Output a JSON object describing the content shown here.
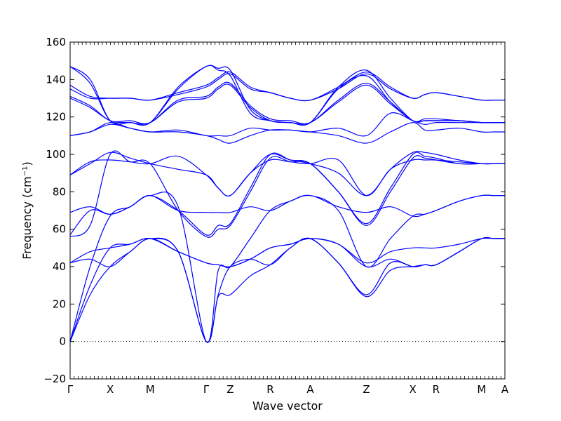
{
  "chart_data": {
    "type": "line",
    "title": "",
    "xlabel": "Wave vector",
    "ylabel": "Frequency (cm⁻¹)",
    "ylim": [
      -20,
      160
    ],
    "yticks": [
      -20,
      0,
      20,
      40,
      60,
      80,
      100,
      120,
      140,
      160
    ],
    "line_color": "#0000ff",
    "zero_line": {
      "value": 0,
      "style": "dotted",
      "color": "#000000"
    },
    "grid": false,
    "legend": "none",
    "x_labels": [
      {
        "label": "Γ",
        "x": 0.0
      },
      {
        "label": "X",
        "x": 0.5
      },
      {
        "label": "M",
        "x": 1.0
      },
      {
        "label": "Γ",
        "x": 1.7
      },
      {
        "label": "Z",
        "x": 2.0
      },
      {
        "label": "R",
        "x": 2.5
      },
      {
        "label": "A",
        "x": 3.0
      },
      {
        "label": "Z",
        "x": 3.7
      },
      {
        "label": "X",
        "x": 4.28
      },
      {
        "label": "R",
        "x": 4.57
      },
      {
        "label": "M",
        "x": 5.14
      },
      {
        "label": "A",
        "x": 5.43
      }
    ],
    "series": [
      {
        "x": [
          0,
          0.25,
          0.5,
          0.75,
          1.0,
          1.35,
          1.7,
          1.85,
          2.0,
          2.25,
          2.5,
          2.75,
          3.0,
          3.35,
          3.7,
          4.0,
          4.28,
          4.43,
          4.57,
          4.86,
          5.14,
          5.29,
          5.43
        ],
        "values": [
          0,
          25,
          40,
          48,
          55,
          48,
          0,
          24,
          25,
          35,
          41,
          50,
          55,
          42,
          24,
          38,
          40,
          41,
          41,
          48,
          55,
          55,
          55
        ]
      },
      {
        "x": [
          0,
          0.25,
          0.5,
          0.75,
          1.0,
          1.35,
          1.7,
          1.85,
          2.0,
          2.25,
          2.5,
          2.75,
          3.0,
          3.35,
          3.7,
          4.0,
          4.28,
          4.43,
          4.57,
          4.86,
          5.14,
          5.29,
          5.43
        ],
        "values": [
          0,
          30,
          50,
          52,
          55,
          48,
          0,
          25,
          40,
          44,
          41,
          50,
          55,
          42,
          25,
          42,
          40,
          41,
          41,
          48,
          55,
          55,
          55
        ]
      },
      {
        "x": [
          0,
          0.25,
          0.5,
          0.75,
          1.0,
          1.35,
          1.7,
          1.85,
          2.0,
          2.25,
          2.5,
          2.75,
          3.0,
          3.35,
          3.7,
          4.0,
          4.28,
          4.43,
          4.57,
          4.86,
          5.14,
          5.29,
          5.43
        ],
        "values": [
          0,
          40,
          67,
          72,
          78,
          72,
          0,
          38,
          40,
          55,
          70,
          75,
          78,
          70,
          40,
          55,
          67,
          68,
          70,
          75,
          78,
          78,
          78
        ]
      },
      {
        "x": [
          0,
          0.25,
          0.5,
          0.75,
          1.0,
          1.35,
          1.7,
          1.85,
          2.0,
          2.25,
          2.5,
          2.75,
          3.0,
          3.35,
          3.7,
          4.0,
          4.28,
          4.43,
          4.57,
          4.86,
          5.14,
          5.29,
          5.43
        ],
        "values": [
          42,
          44,
          40,
          48,
          55,
          48,
          42,
          41,
          40,
          44,
          50,
          52,
          55,
          52,
          40,
          44,
          40,
          41,
          41,
          48,
          55,
          55,
          55
        ]
      },
      {
        "x": [
          0,
          0.25,
          0.5,
          0.75,
          1.0,
          1.35,
          1.7,
          1.85,
          2.0,
          2.25,
          2.5,
          2.75,
          3.0,
          3.35,
          3.7,
          4.0,
          4.28,
          4.43,
          4.57,
          4.86,
          5.14,
          5.29,
          5.43
        ],
        "values": [
          42,
          48,
          50,
          52,
          55,
          48,
          42,
          41,
          40,
          44,
          50,
          52,
          55,
          52,
          42,
          48,
          50,
          50,
          50,
          52,
          55,
          55,
          55
        ]
      },
      {
        "x": [
          0,
          0.25,
          0.5,
          0.75,
          1.0,
          1.35,
          1.7,
          1.85,
          2.0,
          2.25,
          2.5,
          2.75,
          3.0,
          3.35,
          3.7,
          4.0,
          4.28,
          4.43,
          4.57,
          4.86,
          5.14,
          5.29,
          5.43
        ],
        "values": [
          56,
          62,
          100,
          96,
          95,
          70,
          56,
          60,
          62,
          80,
          98,
          96,
          95,
          80,
          62,
          80,
          98,
          98,
          97,
          95,
          95,
          95,
          95
        ]
      },
      {
        "x": [
          0,
          0.25,
          0.5,
          0.75,
          1.0,
          1.35,
          1.7,
          1.85,
          2.0,
          2.25,
          2.5,
          2.75,
          3.0,
          3.35,
          3.7,
          4.0,
          4.28,
          4.43,
          4.57,
          4.86,
          5.14,
          5.29,
          5.43
        ],
        "values": [
          57,
          70,
          68,
          72,
          78,
          70,
          57,
          62,
          63,
          82,
          100,
          97,
          95,
          80,
          63,
          82,
          100,
          99,
          98,
          95,
          95,
          95,
          95
        ]
      },
      {
        "x": [
          0,
          0.25,
          0.5,
          0.75,
          1.0,
          1.35,
          1.7,
          1.85,
          2.0,
          2.25,
          2.5,
          2.75,
          3.0,
          3.35,
          3.7,
          4.0,
          4.28,
          4.43,
          4.57,
          4.86,
          5.14,
          5.29,
          5.43
        ],
        "values": [
          69,
          72,
          68,
          72,
          78,
          70,
          69,
          69,
          69,
          72,
          70,
          75,
          78,
          72,
          69,
          72,
          67,
          68,
          70,
          75,
          78,
          78,
          78
        ]
      },
      {
        "x": [
          0,
          0.25,
          0.5,
          0.75,
          1.0,
          1.35,
          1.7,
          1.85,
          2.0,
          2.25,
          2.5,
          2.75,
          3.0,
          3.35,
          3.7,
          4.0,
          4.28,
          4.43,
          4.57,
          4.86,
          5.14,
          5.29,
          5.43
        ],
        "values": [
          89,
          95,
          101,
          98,
          95,
          92,
          89,
          82,
          78,
          90,
          100,
          97,
          95,
          90,
          78,
          92,
          101,
          101,
          100,
          97,
          95,
          95,
          95
        ]
      },
      {
        "x": [
          0,
          0.25,
          0.5,
          0.75,
          1.0,
          1.35,
          1.7,
          1.85,
          2.0,
          2.25,
          2.5,
          2.75,
          3.0,
          3.35,
          3.7,
          4.0,
          4.28,
          4.43,
          4.57,
          4.86,
          5.14,
          5.29,
          5.43
        ],
        "values": [
          89,
          96,
          97,
          96,
          95,
          99,
          89,
          82,
          78,
          90,
          97,
          96,
          95,
          97,
          78,
          92,
          97,
          97,
          97,
          96,
          95,
          95,
          95
        ]
      },
      {
        "x": [
          0,
          0.25,
          0.5,
          0.75,
          1.0,
          1.35,
          1.7,
          1.85,
          2.0,
          2.25,
          2.5,
          2.75,
          3.0,
          3.35,
          3.7,
          4.0,
          4.28,
          4.43,
          4.57,
          4.86,
          5.14,
          5.29,
          5.43
        ],
        "values": [
          110,
          112,
          116,
          114,
          112,
          112,
          110,
          108,
          106,
          110,
          113,
          113,
          112,
          110,
          106,
          112,
          117,
          113,
          113,
          114,
          112,
          112,
          112
        ]
      },
      {
        "x": [
          0,
          0.25,
          0.5,
          0.75,
          1.0,
          1.35,
          1.7,
          1.85,
          2.0,
          2.25,
          2.5,
          2.75,
          3.0,
          3.35,
          3.7,
          4.0,
          4.28,
          4.43,
          4.57,
          4.86,
          5.14,
          5.29,
          5.43
        ],
        "values": [
          110,
          112,
          117,
          114,
          112,
          113,
          110,
          110,
          110,
          114,
          113,
          113,
          112,
          114,
          110,
          122,
          118,
          116,
          117,
          117,
          117,
          117,
          117
        ]
      },
      {
        "x": [
          0,
          0.25,
          0.5,
          0.75,
          1.0,
          1.35,
          1.7,
          1.85,
          2.0,
          2.25,
          2.5,
          2.75,
          3.0,
          3.35,
          3.7,
          4.0,
          4.28,
          4.43,
          4.57,
          4.86,
          5.14,
          5.29,
          5.43
        ],
        "values": [
          130,
          125,
          118,
          117,
          117,
          128,
          130,
          135,
          137,
          125,
          118,
          117,
          117,
          128,
          137,
          127,
          118,
          118,
          118,
          118,
          117,
          117,
          117
        ]
      },
      {
        "x": [
          0,
          0.25,
          0.5,
          0.75,
          1.0,
          1.35,
          1.7,
          1.85,
          2.0,
          2.25,
          2.5,
          2.75,
          3.0,
          3.35,
          3.7,
          4.0,
          4.28,
          4.43,
          4.57,
          4.86,
          5.14,
          5.29,
          5.43
        ],
        "values": [
          131,
          126,
          118,
          118,
          117,
          129,
          131,
          136,
          138,
          126,
          119,
          118,
          117,
          129,
          138,
          128,
          118,
          119,
          119,
          118,
          117,
          117,
          117
        ]
      },
      {
        "x": [
          0,
          0.25,
          0.5,
          0.75,
          1.0,
          1.35,
          1.7,
          1.85,
          2.0,
          2.25,
          2.5,
          2.75,
          3.0,
          3.35,
          3.7,
          4.0,
          4.28,
          4.43,
          4.57,
          4.86,
          5.14,
          5.29,
          5.43
        ],
        "values": [
          135,
          130,
          130,
          130,
          129,
          132,
          136,
          140,
          143,
          135,
          133,
          130,
          129,
          135,
          143,
          135,
          130,
          132,
          133,
          131,
          129,
          129,
          129
        ]
      },
      {
        "x": [
          0,
          0.25,
          0.5,
          0.75,
          1.0,
          1.35,
          1.7,
          1.85,
          2.0,
          2.25,
          2.5,
          2.75,
          3.0,
          3.35,
          3.7,
          4.0,
          4.28,
          4.43,
          4.57,
          4.86,
          5.14,
          5.29,
          5.43
        ],
        "values": [
          137,
          131,
          130,
          130,
          129,
          133,
          137,
          141,
          144,
          136,
          133,
          130,
          129,
          136,
          144,
          136,
          130,
          132,
          133,
          131,
          129,
          129,
          129
        ]
      },
      {
        "x": [
          0,
          0.25,
          0.5,
          0.75,
          1.0,
          1.35,
          1.7,
          1.85,
          2.0,
          2.25,
          2.5,
          2.75,
          3.0,
          3.35,
          3.7,
          4.0,
          4.28,
          4.43,
          4.57,
          4.86,
          5.14,
          5.29,
          5.43
        ],
        "values": [
          147,
          138,
          118,
          117,
          117,
          135,
          147,
          145,
          142,
          122,
          118,
          117,
          117,
          135,
          142,
          128,
          118,
          118,
          118,
          118,
          117,
          117,
          117
        ]
      },
      {
        "x": [
          0,
          0.25,
          0.5,
          0.75,
          1.0,
          1.35,
          1.7,
          1.85,
          2.0,
          2.25,
          2.5,
          2.75,
          3.0,
          3.35,
          3.7,
          4.0,
          4.28,
          4.43,
          4.57,
          4.86,
          5.14,
          5.29,
          5.43
        ],
        "values": [
          147,
          140,
          118,
          117,
          117,
          136,
          147,
          146,
          145,
          124,
          118,
          117,
          117,
          136,
          145,
          130,
          118,
          118,
          118,
          118,
          117,
          117,
          117
        ]
      }
    ]
  }
}
